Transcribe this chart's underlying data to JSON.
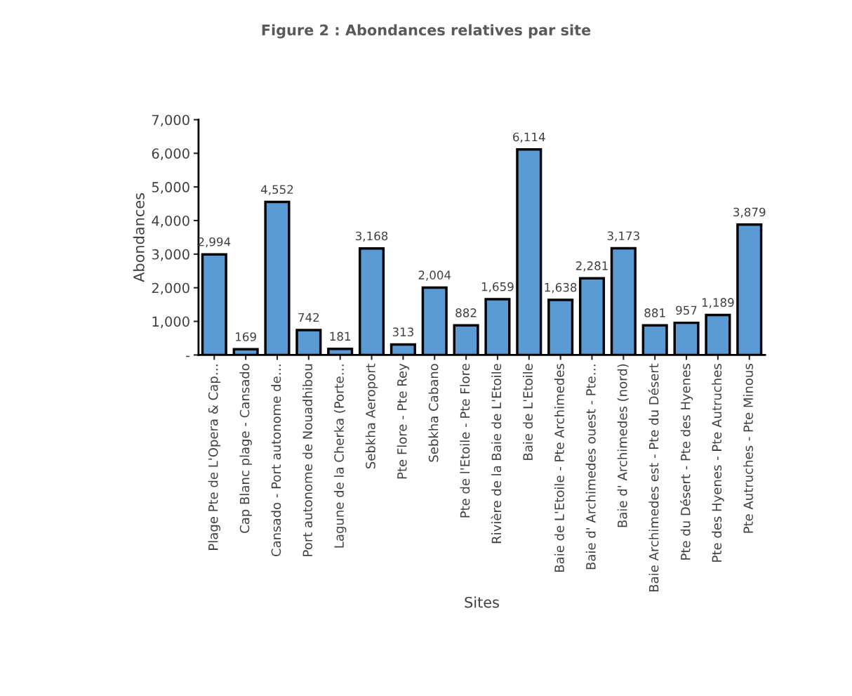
{
  "chart_data": {
    "type": "bar",
    "title": "Figure 2 : Abondances relatives par site",
    "xlabel": "Sites",
    "ylabel": "Abondances",
    "categories": [
      "Plage Pte de L'Opera & Cap…",
      "Cap Blanc plage - Cansado",
      "Cansado - Port autonome de…",
      "Port autonome de Nouadhibou",
      "Lagune de la Cherka (Porte…",
      "Sebkha Aeroport",
      "Pte Flore - Pte Rey",
      "Sebkha Cabano",
      "Pte de l'Etoile - Pte Flore",
      "Rivière de la Baie de L'Etoile",
      "Baie de L'Etoile",
      "Baie de L'Etoile - Pte Archimedes",
      "Baie d' Archimedes ouest - Pte…",
      "Baie d' Archimedes (nord)",
      "Baie Archimedes est - Pte du Désert",
      "Pte du Désert - Pte des Hyenes",
      "Pte des Hyenes - Pte Autruches",
      "Pte Autruches - Pte Minous"
    ],
    "values": [
      2994,
      169,
      4552,
      742,
      181,
      3168,
      313,
      2004,
      882,
      1659,
      6114,
      1638,
      2281,
      3173,
      881,
      957,
      1189,
      3879
    ],
    "value_labels": [
      "2,994",
      "169",
      "4,552",
      "742",
      "181",
      "3,168",
      "313",
      "2,004",
      "882",
      "1,659",
      "6,114",
      "1,638",
      "2,281",
      "3,173",
      "881",
      "957",
      "1,189",
      "3,879"
    ],
    "color": "#5b9bd5",
    "ylim": [
      0,
      7000
    ],
    "yticks": [
      {
        "value": 0,
        "label": "-"
      },
      {
        "value": 1000,
        "label": "1,000"
      },
      {
        "value": 2000,
        "label": "2,000"
      },
      {
        "value": 3000,
        "label": "3,000"
      },
      {
        "value": 4000,
        "label": "4,000"
      },
      {
        "value": 5000,
        "label": "5,000"
      },
      {
        "value": 6000,
        "label": "6,000"
      },
      {
        "value": 7000,
        "label": "7,000"
      }
    ],
    "grid": false,
    "legend": false
  }
}
